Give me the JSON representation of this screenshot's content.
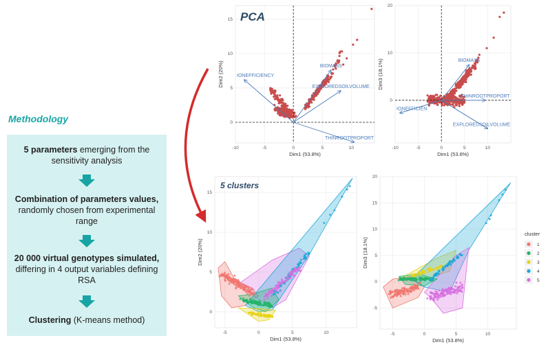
{
  "methodology": {
    "title": "Methodology",
    "steps": [
      {
        "bold": "5 parameters",
        "rest": " emerging from the sensitivity analysis"
      },
      {
        "bold": "Combination of parameters values,",
        "rest": " randomly chosen from experimental range"
      },
      {
        "bold": "20 000 virtual genotypes simulated,",
        "rest": " differing in 4 output variables defining RSA"
      },
      {
        "bold": "Clustering",
        "rest": " (K-means method)"
      }
    ]
  },
  "colors": {
    "panel_bg": "#d6f1f1",
    "teal_arrow": "#17a4a4",
    "red_arrow": "#d42b2b",
    "pca_points": "#c94c4c",
    "vector": "#4a7ab8"
  },
  "chart_data": [
    {
      "type": "scatter",
      "title": "PCA",
      "xlabel": "Dim1 (53.8%)",
      "ylabel": "Dim2 (20%)",
      "xlim": [
        -10,
        14
      ],
      "ylim": [
        -3,
        17
      ],
      "xticks": [
        -10,
        -5,
        0,
        5,
        10
      ],
      "yticks": [
        0,
        5,
        10,
        15
      ],
      "vectors": [
        {
          "name": "ROOTSECTIONEFFICIENCY",
          "label": "IONEFFICIENCY",
          "x": -8.5,
          "y": 6.2
        },
        {
          "name": "BIOMASS",
          "label": "BIOMASS",
          "x": 6.5,
          "y": 7.6
        },
        {
          "name": "EXPLOREDSOILVOLUME",
          "label": "EXPLOREDSOILVOLUME",
          "x": 8.2,
          "y": 4.6
        },
        {
          "name": "THINROOTPROPORTION",
          "label": "THINROOTPROPORT",
          "x": 10.5,
          "y": -2.9
        }
      ]
    },
    {
      "type": "scatter",
      "title": "",
      "xlabel": "Dim1 (53.8%)",
      "ylabel": "Dim3 (18.1%)",
      "xlim": [
        -10,
        15
      ],
      "ylim": [
        -9,
        20
      ],
      "xticks": [
        -10,
        -5,
        0,
        5,
        10
      ],
      "yticks": [
        0,
        10,
        20
      ],
      "vectors": [
        {
          "name": "ROOTSECTIONEFFICIENCY",
          "label": "IONEFFICIEN",
          "x": -9,
          "y": -2.7
        },
        {
          "name": "BIOMASS",
          "label": "BIOMASS",
          "x": 6,
          "y": 7.5
        },
        {
          "name": "THINROOTPROPORTION",
          "label": "THINROOTPROPORT",
          "x": 9.5,
          "y": 0
        },
        {
          "name": "EXPLOREDSOILVOLUME",
          "label": "EXPLOREDSOILVOLUME",
          "x": 10,
          "y": -6
        }
      ]
    },
    {
      "type": "scatter",
      "title": "5 clusters",
      "xlabel": "Dim1 (53.8%)",
      "ylabel": "Dim2 (20%)",
      "xlim": [
        -6.5,
        14.5
      ],
      "ylim": [
        -2,
        17
      ],
      "xticks": [
        -5,
        0,
        5,
        10
      ],
      "yticks": [
        0,
        5,
        10,
        15
      ],
      "legend": "none"
    },
    {
      "type": "scatter",
      "title": "",
      "xlabel": "Dim1 (53.8%)",
      "ylabel": "Dim3 (18.1%)",
      "xlim": [
        -7,
        14.5
      ],
      "ylim": [
        -9,
        20
      ],
      "xticks": [
        -5,
        0,
        5,
        10
      ],
      "yticks": [
        -5,
        0,
        5,
        10,
        15,
        20
      ],
      "legend": "right"
    }
  ],
  "legend": {
    "title": "cluster",
    "items": [
      {
        "label": "1",
        "color": "#f0776f"
      },
      {
        "label": "2",
        "color": "#25b36a"
      },
      {
        "label": "3",
        "color": "#e6d21a"
      },
      {
        "label": "4",
        "color": "#1fa8d8"
      },
      {
        "label": "5",
        "color": "#d86fe0"
      }
    ]
  }
}
